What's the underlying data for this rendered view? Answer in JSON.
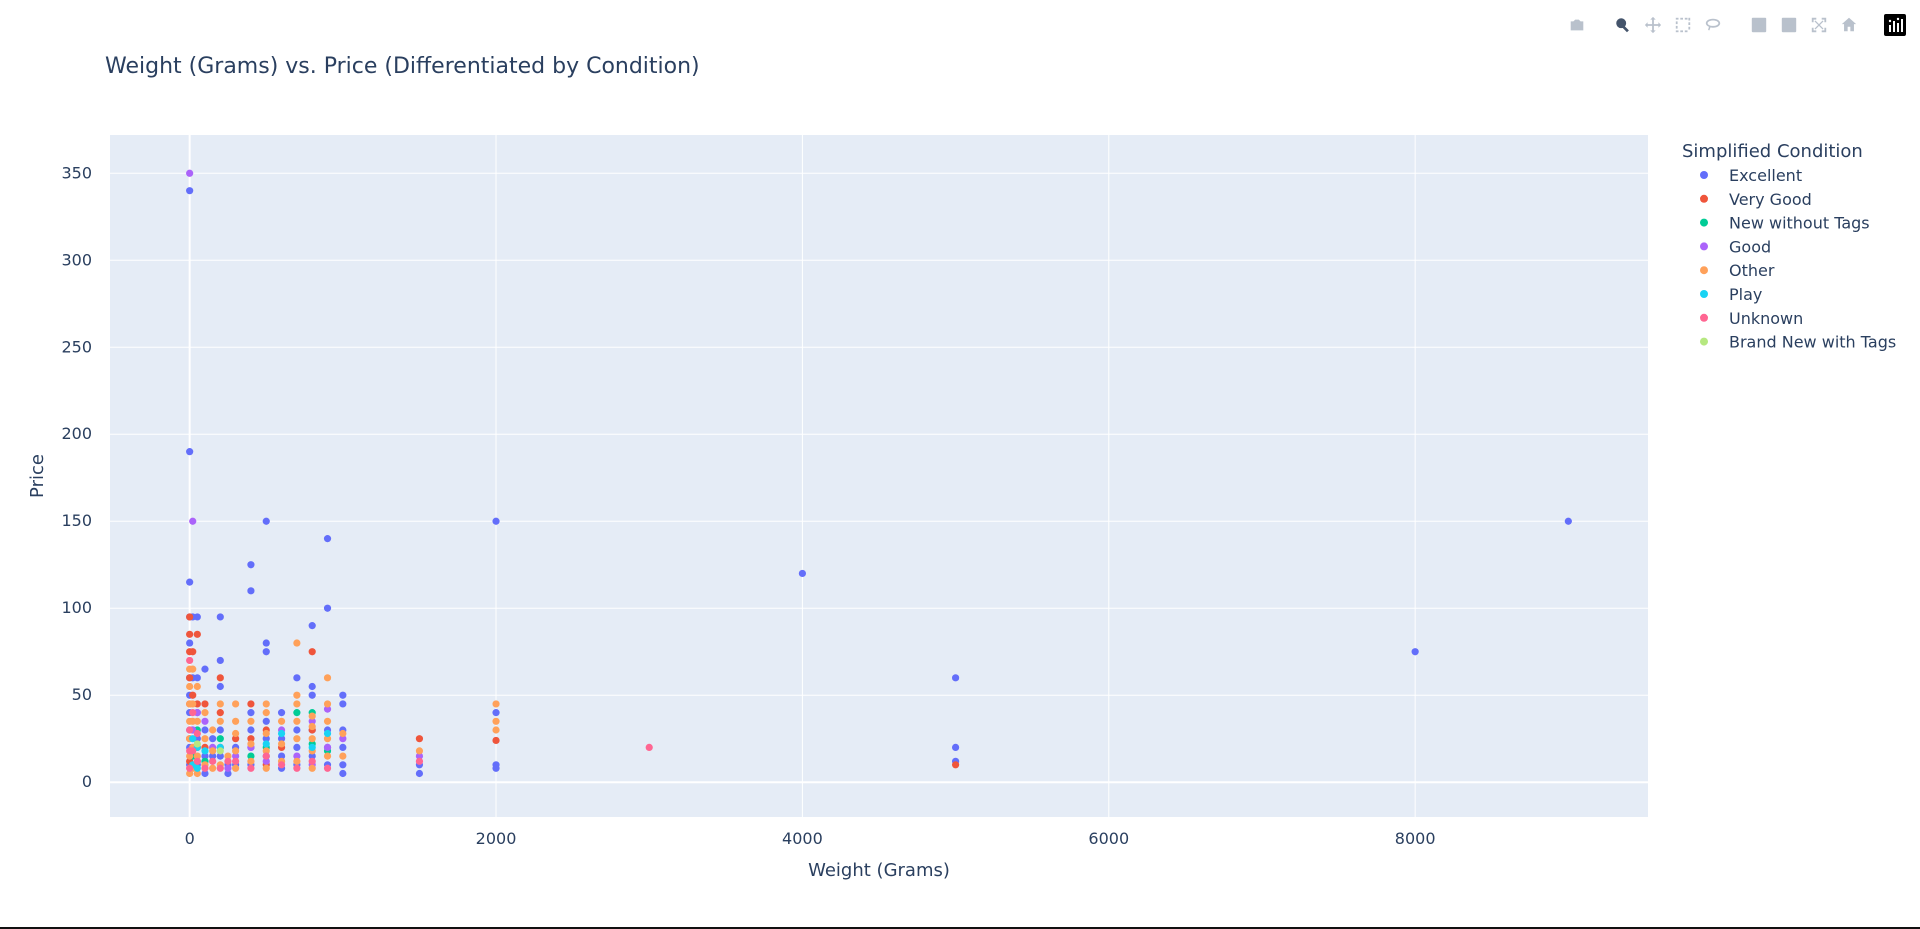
{
  "modebar": {
    "buttons": [
      {
        "name": "camera-icon",
        "group": 0,
        "active": false
      },
      {
        "name": "zoom-icon",
        "group": 1,
        "active": true
      },
      {
        "name": "pan-icon",
        "group": 1,
        "active": false
      },
      {
        "name": "box-select-icon",
        "group": 1,
        "active": false
      },
      {
        "name": "lasso-select-icon",
        "group": 1,
        "active": false
      },
      {
        "name": "zoom-in-icon",
        "group": 2,
        "active": false
      },
      {
        "name": "zoom-out-icon",
        "group": 2,
        "active": false
      },
      {
        "name": "autoscale-icon",
        "group": 2,
        "active": false
      },
      {
        "name": "reset-axes-icon",
        "group": 2,
        "active": false
      },
      {
        "name": "plotly-logo-icon",
        "group": 3,
        "active": false
      }
    ]
  },
  "chart_data": {
    "type": "scatter",
    "title": "Weight (Grams) vs. Price (Differentiated by Condition)",
    "xlabel": "Weight (Grams)",
    "ylabel": "Price",
    "xlim": [
      -520,
      9520
    ],
    "ylim": [
      -20,
      372
    ],
    "x_ticks": [
      0,
      2000,
      4000,
      6000,
      8000
    ],
    "y_ticks": [
      0,
      50,
      100,
      150,
      200,
      250,
      300,
      350
    ],
    "grid": true,
    "plot_background": "#e5ecf6",
    "legend_title": "Simplified Condition",
    "legend_position": "right",
    "series": [
      {
        "name": "Excellent",
        "color": "#636efa",
        "points": [
          [
            0,
            340
          ],
          [
            0,
            190
          ],
          [
            0,
            115
          ],
          [
            0,
            95
          ],
          [
            0,
            80
          ],
          [
            0,
            60
          ],
          [
            0,
            50
          ],
          [
            0,
            40
          ],
          [
            0,
            30
          ],
          [
            0,
            20
          ],
          [
            0,
            10
          ],
          [
            20,
            95
          ],
          [
            20,
            60
          ],
          [
            20,
            30
          ],
          [
            50,
            95
          ],
          [
            50,
            60
          ],
          [
            50,
            40
          ],
          [
            50,
            25
          ],
          [
            50,
            10
          ],
          [
            100,
            65
          ],
          [
            100,
            30
          ],
          [
            100,
            15
          ],
          [
            100,
            5
          ],
          [
            150,
            25
          ],
          [
            150,
            15
          ],
          [
            200,
            95
          ],
          [
            200,
            70
          ],
          [
            200,
            55
          ],
          [
            200,
            30
          ],
          [
            200,
            15
          ],
          [
            250,
            10
          ],
          [
            250,
            5
          ],
          [
            300,
            20
          ],
          [
            300,
            10
          ],
          [
            400,
            125
          ],
          [
            400,
            110
          ],
          [
            400,
            40
          ],
          [
            400,
            30
          ],
          [
            400,
            20
          ],
          [
            400,
            10
          ],
          [
            500,
            150
          ],
          [
            500,
            80
          ],
          [
            500,
            75
          ],
          [
            500,
            35
          ],
          [
            500,
            25
          ],
          [
            500,
            15
          ],
          [
            600,
            40
          ],
          [
            600,
            25
          ],
          [
            600,
            15
          ],
          [
            600,
            8
          ],
          [
            700,
            60
          ],
          [
            700,
            30
          ],
          [
            700,
            20
          ],
          [
            700,
            10
          ],
          [
            800,
            90
          ],
          [
            800,
            55
          ],
          [
            800,
            50
          ],
          [
            800,
            30
          ],
          [
            800,
            15
          ],
          [
            900,
            140
          ],
          [
            900,
            100
          ],
          [
            900,
            30
          ],
          [
            900,
            20
          ],
          [
            900,
            10
          ],
          [
            1000,
            50
          ],
          [
            1000,
            45
          ],
          [
            1000,
            30
          ],
          [
            1000,
            20
          ],
          [
            1000,
            10
          ],
          [
            1000,
            5
          ],
          [
            1500,
            10
          ],
          [
            1500,
            5
          ],
          [
            2000,
            150
          ],
          [
            2000,
            40
          ],
          [
            2000,
            10
          ],
          [
            2000,
            8
          ],
          [
            4000,
            120
          ],
          [
            5000,
            60
          ],
          [
            5000,
            20
          ],
          [
            5000,
            12
          ],
          [
            8000,
            75
          ],
          [
            9000,
            150
          ]
        ]
      },
      {
        "name": "Very Good",
        "color": "#ef553b",
        "points": [
          [
            0,
            95
          ],
          [
            0,
            85
          ],
          [
            0,
            75
          ],
          [
            0,
            60
          ],
          [
            0,
            45
          ],
          [
            0,
            25
          ],
          [
            0,
            12
          ],
          [
            20,
            75
          ],
          [
            20,
            50
          ],
          [
            50,
            85
          ],
          [
            50,
            45
          ],
          [
            50,
            20
          ],
          [
            100,
            45
          ],
          [
            100,
            20
          ],
          [
            200,
            60
          ],
          [
            200,
            40
          ],
          [
            200,
            20
          ],
          [
            300,
            25
          ],
          [
            400,
            45
          ],
          [
            400,
            25
          ],
          [
            500,
            30
          ],
          [
            500,
            10
          ],
          [
            600,
            20
          ],
          [
            800,
            75
          ],
          [
            800,
            30
          ],
          [
            1500,
            25
          ],
          [
            2000,
            24
          ],
          [
            5000,
            10
          ]
        ]
      },
      {
        "name": "New without Tags",
        "color": "#00cc96",
        "points": [
          [
            20,
            15
          ],
          [
            50,
            30
          ],
          [
            100,
            12
          ],
          [
            200,
            25
          ],
          [
            400,
            15
          ],
          [
            500,
            20
          ],
          [
            700,
            40
          ],
          [
            800,
            40
          ],
          [
            800,
            22
          ],
          [
            900,
            18
          ]
        ]
      },
      {
        "name": "Good",
        "color": "#ab63fa",
        "points": [
          [
            0,
            350
          ],
          [
            20,
            150
          ],
          [
            20,
            30
          ],
          [
            50,
            40
          ],
          [
            50,
            12
          ],
          [
            100,
            35
          ],
          [
            150,
            20
          ],
          [
            250,
            8
          ],
          [
            300,
            15
          ],
          [
            400,
            20
          ],
          [
            500,
            12
          ],
          [
            600,
            30
          ],
          [
            700,
            15
          ],
          [
            800,
            35
          ],
          [
            800,
            10
          ],
          [
            900,
            42
          ],
          [
            900,
            20
          ],
          [
            1000,
            25
          ],
          [
            1500,
            15
          ]
        ]
      },
      {
        "name": "Other",
        "color": "#ffa15a",
        "points": [
          [
            0,
            65
          ],
          [
            0,
            55
          ],
          [
            0,
            45
          ],
          [
            0,
            35
          ],
          [
            0,
            25
          ],
          [
            0,
            15
          ],
          [
            0,
            5
          ],
          [
            20,
            65
          ],
          [
            20,
            45
          ],
          [
            20,
            35
          ],
          [
            20,
            20
          ],
          [
            20,
            8
          ],
          [
            50,
            55
          ],
          [
            50,
            35
          ],
          [
            50,
            15
          ],
          [
            50,
            5
          ],
          [
            100,
            40
          ],
          [
            100,
            25
          ],
          [
            100,
            10
          ],
          [
            150,
            30
          ],
          [
            150,
            18
          ],
          [
            150,
            8
          ],
          [
            200,
            45
          ],
          [
            200,
            35
          ],
          [
            200,
            10
          ],
          [
            250,
            15
          ],
          [
            300,
            45
          ],
          [
            300,
            35
          ],
          [
            300,
            28
          ],
          [
            300,
            18
          ],
          [
            300,
            8
          ],
          [
            400,
            35
          ],
          [
            400,
            22
          ],
          [
            400,
            12
          ],
          [
            500,
            45
          ],
          [
            500,
            40
          ],
          [
            500,
            28
          ],
          [
            500,
            18
          ],
          [
            500,
            8
          ],
          [
            600,
            35
          ],
          [
            600,
            22
          ],
          [
            600,
            12
          ],
          [
            700,
            80
          ],
          [
            700,
            50
          ],
          [
            700,
            45
          ],
          [
            700,
            35
          ],
          [
            700,
            25
          ],
          [
            700,
            12
          ],
          [
            800,
            38
          ],
          [
            800,
            32
          ],
          [
            800,
            25
          ],
          [
            800,
            18
          ],
          [
            800,
            8
          ],
          [
            900,
            60
          ],
          [
            900,
            45
          ],
          [
            900,
            35
          ],
          [
            900,
            25
          ],
          [
            900,
            15
          ],
          [
            1000,
            28
          ],
          [
            1000,
            15
          ],
          [
            1500,
            18
          ],
          [
            2000,
            45
          ],
          [
            2000,
            35
          ],
          [
            2000,
            30
          ]
        ]
      },
      {
        "name": "Play",
        "color": "#19d3f3",
        "points": [
          [
            20,
            25
          ],
          [
            20,
            10
          ],
          [
            50,
            20
          ],
          [
            50,
            8
          ],
          [
            100,
            18
          ],
          [
            200,
            20
          ],
          [
            500,
            22
          ],
          [
            600,
            28
          ],
          [
            800,
            20
          ],
          [
            900,
            28
          ]
        ]
      },
      {
        "name": "Unknown",
        "color": "#ff6692",
        "points": [
          [
            0,
            70
          ],
          [
            0,
            30
          ],
          [
            0,
            18
          ],
          [
            0,
            8
          ],
          [
            20,
            40
          ],
          [
            20,
            18
          ],
          [
            50,
            28
          ],
          [
            50,
            12
          ],
          [
            100,
            8
          ],
          [
            150,
            12
          ],
          [
            200,
            8
          ],
          [
            250,
            12
          ],
          [
            300,
            12
          ],
          [
            400,
            8
          ],
          [
            500,
            15
          ],
          [
            600,
            10
          ],
          [
            700,
            8
          ],
          [
            800,
            12
          ],
          [
            900,
            8
          ],
          [
            1500,
            12
          ],
          [
            3000,
            20
          ]
        ]
      },
      {
        "name": "Brand New with Tags",
        "color": "#b6e880",
        "points": [
          [
            50,
            22
          ],
          [
            200,
            18
          ]
        ]
      }
    ]
  }
}
